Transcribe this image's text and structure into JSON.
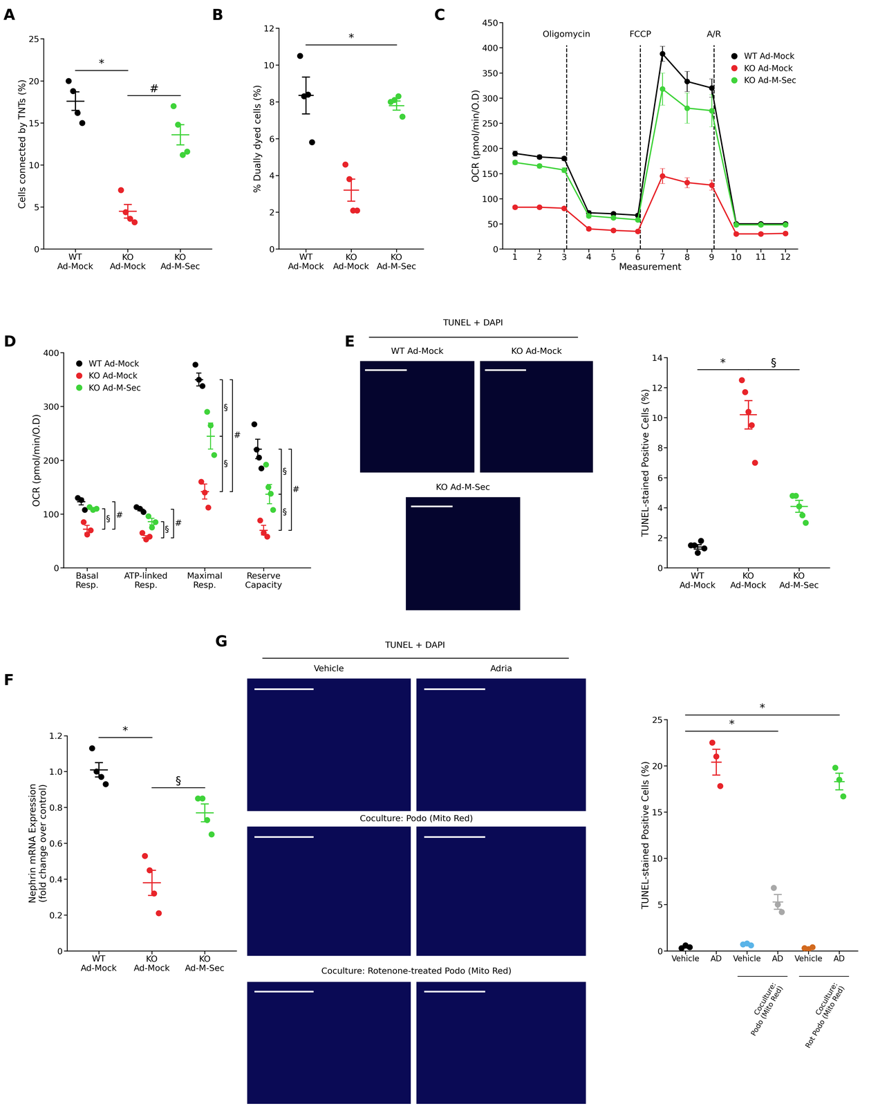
{
  "chart_data": [
    {
      "type": "dot",
      "panel": "A",
      "categories": [
        "WT\nAd-Mock",
        "KO\nAd-Mock",
        "KO\nAd-M-Sec"
      ],
      "colors": [
        "#000000",
        "#e8242a",
        "#3fd33a"
      ],
      "values": [
        [
          20.0,
          18.8,
          16.2,
          15.0
        ],
        [
          7.0,
          4.4,
          3.6,
          3.2
        ],
        [
          17.0,
          14.8,
          11.2,
          11.6
        ]
      ],
      "means": [
        17.6,
        4.5,
        13.6
      ],
      "sems": [
        1.1,
        0.8,
        1.2
      ],
      "y_label": "Cells connected by TNTs (%)",
      "ylim": [
        0,
        25
      ],
      "yticks": [
        0,
        5,
        10,
        15,
        20,
        25
      ],
      "significance": [
        {
          "from": 0,
          "to": 1,
          "text": "*"
        },
        {
          "from": 1,
          "to": 2,
          "text": "#"
        }
      ]
    },
    {
      "type": "dot",
      "panel": "B",
      "categories": [
        "WT\nAd-Mock",
        "KO\nAd-Mock",
        "KO\nAd-M-Sec"
      ],
      "colors": [
        "#000000",
        "#e8242a",
        "#3fd33a"
      ],
      "values": [
        [
          10.5,
          8.3,
          8.4,
          5.8
        ],
        [
          4.6,
          3.8,
          2.1,
          2.1
        ],
        [
          8.0,
          8.1,
          8.3,
          7.2
        ]
      ],
      "means": [
        8.35,
        3.2,
        7.8
      ],
      "sems": [
        1.0,
        0.6,
        0.25
      ],
      "y_label": "% Dually dyed cells (%)",
      "ylim": [
        0,
        12
      ],
      "yticks": [
        0,
        2,
        4,
        6,
        8,
        10,
        12
      ],
      "significance": [
        {
          "from": 0,
          "to": 2,
          "text": "*"
        }
      ]
    },
    {
      "type": "line",
      "panel": "C",
      "x": [
        1,
        2,
        3,
        4,
        5,
        6,
        7,
        8,
        9,
        10,
        11,
        12
      ],
      "series": [
        {
          "name": "WT Ad-Mock",
          "color": "#000000",
          "marker": "o",
          "values": [
            190,
            183,
            180,
            72,
            70,
            67,
            388,
            333,
            320,
            50,
            50,
            50
          ],
          "errors": [
            5,
            4,
            4,
            4,
            3,
            3,
            15,
            20,
            18,
            3,
            3,
            3
          ]
        },
        {
          "name": "KO Ad-Mock",
          "color": "#e8242a",
          "marker": "o",
          "values": [
            83,
            83,
            81,
            40,
            37,
            35,
            145,
            132,
            127,
            30,
            30,
            31
          ],
          "errors": [
            3,
            3,
            3,
            3,
            3,
            3,
            15,
            10,
            10,
            3,
            3,
            3
          ]
        },
        {
          "name": "KO Ad-M-Sec",
          "color": "#3fd33a",
          "marker": "o",
          "values": [
            172,
            165,
            157,
            66,
            62,
            58,
            318,
            280,
            275,
            48,
            48,
            48
          ],
          "errors": [
            4,
            4,
            5,
            4,
            3,
            3,
            32,
            30,
            32,
            3,
            3,
            3
          ]
        }
      ],
      "events": [
        {
          "x": 3.1,
          "label": "Oligomycin"
        },
        {
          "x": 6.1,
          "label": "FCCP"
        },
        {
          "x": 9.1,
          "label": "A/R"
        }
      ],
      "x_label": "Measurement",
      "y_label": "OCR (pmol/min/O.D)",
      "xlim": [
        0.5,
        12.5
      ],
      "xticks": [
        1,
        2,
        3,
        4,
        5,
        6,
        7,
        8,
        9,
        10,
        11,
        12
      ],
      "ylim": [
        0,
        450
      ],
      "yticks": [
        0,
        50,
        100,
        150,
        200,
        250,
        300,
        350,
        400,
        450
      ],
      "legend": "upper right"
    },
    {
      "type": "grouped_dot",
      "panel": "D",
      "categories": [
        "Basal\nResp.",
        "ATP-linked\nResp.",
        "Maximal\nResp.",
        "Reserve\nCapacity"
      ],
      "series": [
        {
          "name": "WT Ad-Mock",
          "color": "#000000",
          "values": [
            [
              130,
              126,
              108
            ],
            [
              113,
              110,
              104
            ],
            [
              378,
              350,
              338
            ],
            [
              267,
              220,
              205,
              185
            ]
          ],
          "means": [
            123,
            109,
            350,
            221
          ],
          "sems": [
            6,
            3,
            12,
            18
          ]
        },
        {
          "name": "KO Ad-Mock",
          "color": "#e8242a",
          "values": [
            [
              85,
              62,
              70
            ],
            [
              65,
              53,
              58
            ],
            [
              160,
              140,
              112
            ],
            [
              88,
              65,
              58
            ]
          ],
          "means": [
            72,
            56,
            142,
            70
          ],
          "sems": [
            7,
            4,
            14,
            9
          ]
        },
        {
          "name": "KO Ad-M-Sec",
          "color": "#3fd33a",
          "values": [
            [
              113,
              108,
              110
            ],
            [
              96,
              75,
              85
            ],
            [
              290,
              265,
              210
            ],
            [
              192,
              150,
              138,
              108
            ]
          ],
          "means": [
            110,
            86,
            245,
            137
          ],
          "sems": [
            2,
            6,
            24,
            18
          ]
        }
      ],
      "brackets": [
        {
          "category": 0,
          "from": 2,
          "to": 1,
          "text": "§"
        },
        {
          "category": 0,
          "from": 0,
          "to": 1,
          "text": "#"
        },
        {
          "category": 1,
          "from": 2,
          "to": 1,
          "text": "§"
        },
        {
          "category": 1,
          "from": 0,
          "to": 1,
          "text": "#"
        },
        {
          "category": 2,
          "from": 0,
          "to": 2,
          "text": "§"
        },
        {
          "category": 2,
          "from": 2,
          "to": 1,
          "text": "§"
        },
        {
          "category": 2,
          "from": 0,
          "to": 1,
          "text": "#"
        },
        {
          "category": 3,
          "from": 0,
          "to": 2,
          "text": "§"
        },
        {
          "category": 3,
          "from": 2,
          "to": 1,
          "text": "§"
        },
        {
          "category": 3,
          "from": 0,
          "to": 1,
          "text": "#"
        }
      ],
      "y_label": "OCR (pmol/min/O.D)",
      "ylim": [
        0,
        400
      ],
      "yticks": [
        0,
        100,
        200,
        300,
        400
      ],
      "legend": "upper left"
    },
    {
      "type": "dot",
      "categories": [
        "WT\nAd-Mock",
        "KO\nAd-Mock",
        "KO\nAd-M-Sec"
      ],
      "colors": [
        "#000000",
        "#e8242a",
        "#3fd33a"
      ],
      "values": [
        [
          1.5,
          1.5,
          1.0,
          1.8,
          1.3
        ],
        [
          12.5,
          11.7,
          10.4,
          9.5,
          7.0
        ],
        [
          4.8,
          4.8,
          4.1,
          3.5,
          3.0
        ]
      ],
      "means": [
        1.4,
        10.2,
        4.1
      ],
      "sems": [
        0.15,
        0.95,
        0.4
      ],
      "y_label": "TUNEL-stained Positive Cells (%)",
      "ylim": [
        0,
        14
      ],
      "yticks": [
        0,
        2,
        4,
        6,
        8,
        10,
        12,
        14
      ],
      "significance": [
        {
          "from": 0,
          "to": 1,
          "text": "*"
        },
        {
          "from": 1,
          "to": 2,
          "text": "§"
        }
      ]
    },
    {
      "type": "dot",
      "panel": "F",
      "categories": [
        "WT\nAd-Mock",
        "KO\nAd-Mock",
        "KO\nAd-M-Sec"
      ],
      "colors": [
        "#000000",
        "#e8242a",
        "#3fd33a"
      ],
      "values": [
        [
          1.13,
          1.0,
          0.97,
          0.93
        ],
        [
          0.53,
          0.45,
          0.32,
          0.21
        ],
        [
          0.85,
          0.85,
          0.73,
          0.65
        ]
      ],
      "means": [
        1.01,
        0.38,
        0.77
      ],
      "sems": [
        0.04,
        0.07,
        0.05
      ],
      "y_label": "Nephrin mRNA Expression\n(fold change over control)",
      "ylim": [
        0,
        1.2
      ],
      "yticks": [
        0,
        0.2,
        0.4,
        0.6,
        0.8,
        1.0,
        1.2
      ],
      "significance": [
        {
          "from": 0,
          "to": 1,
          "text": "*"
        },
        {
          "from": 1,
          "to": 2,
          "text": "§"
        }
      ]
    },
    {
      "type": "dot",
      "categories": [
        "Vehicle",
        "AD",
        "Vehicle",
        "AD",
        "Vehicle",
        "AD"
      ],
      "colors": [
        "#000000",
        "#e8242a",
        "#5ab4e8",
        "#a8a8a8",
        "#d2691e",
        "#3fd33a"
      ],
      "values": [
        [
          0.3,
          0.6,
          0.4
        ],
        [
          22.5,
          21.0,
          17.8
        ],
        [
          0.7,
          0.8,
          0.6
        ],
        [
          6.8,
          5.0,
          4.2
        ],
        [
          0.3,
          0.2,
          0.4
        ],
        [
          19.8,
          18.5,
          16.7
        ]
      ],
      "means": [
        0.4,
        20.4,
        0.7,
        5.3,
        0.3,
        18.3
      ],
      "sems": [
        0.08,
        1.4,
        0.05,
        0.8,
        0.05,
        0.9
      ],
      "groups": [
        {
          "label": "Coculture:\nPodo (Mito Red)",
          "from": 2,
          "to": 3
        },
        {
          "label": "Coculture:\nRot Podo (Mito Red)",
          "from": 4,
          "to": 5
        }
      ],
      "y_label": "TUNEL-stained Positive Cells (%)",
      "ylim": [
        0,
        25
      ],
      "yticks": [
        0,
        5,
        10,
        15,
        20,
        25
      ],
      "significance": [
        {
          "from": 0,
          "to": 3,
          "text": "*"
        },
        {
          "from": 0,
          "to": 5,
          "text": "*"
        }
      ]
    }
  ],
  "image_panels": [
    {
      "panel": "E",
      "header": "TUNEL + DAPI",
      "images": [
        "WT Ad-Mock",
        "KO Ad-Mock",
        "KO Ad-M-Sec"
      ]
    },
    {
      "panel": "G",
      "header": "TUNEL + DAPI",
      "columns": [
        "Vehicle",
        "Adria"
      ],
      "row_labels": [
        "Coculture: Podo (Mito Red)",
        "Coculture: Rotenone-treated Podo (Mito Red)"
      ]
    }
  ]
}
